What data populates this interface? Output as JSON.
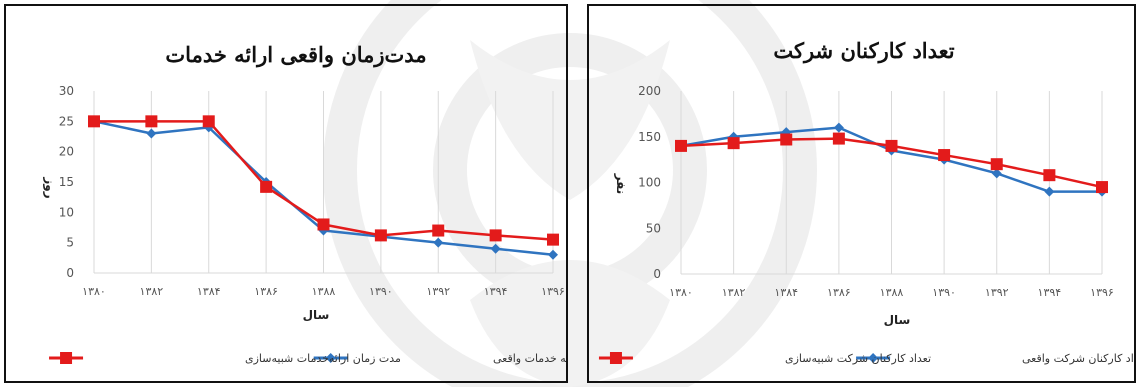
{
  "colors": {
    "actual": "#2f74c0",
    "simulation": "#e31b1b",
    "grid": "#d9d9d9",
    "frame": "#111111"
  },
  "chart_data": [
    {
      "type": "line",
      "title": "مدت‌زمان واقعی ارائه خدمات",
      "xlabel": "سال",
      "ylabel": "روز",
      "categories": [
        "۱۳۸۰",
        "۱۳۸۲",
        "۱۳۸۴",
        "۱۳۸۶",
        "۱۳۸۸",
        "۱۳۹۰",
        "۱۳۹۲",
        "۱۳۹۴",
        "۱۳۹۶"
      ],
      "ylim": [
        0,
        30
      ],
      "yticks": [
        0,
        5,
        10,
        15,
        20,
        25,
        30
      ],
      "grid": true,
      "legend_position": "bottom",
      "series": [
        {
          "name": "مدت زمان ارائه خدمات واقعی",
          "color": "#2f74c0",
          "marker": "diamond",
          "values": [
            25,
            23,
            24,
            15,
            7,
            6,
            5,
            4,
            3
          ]
        },
        {
          "name": "مدت زمان ارائه‌خدمات شبیه‌سازی",
          "color": "#e31b1b",
          "marker": "square",
          "values": [
            25,
            25,
            25,
            14.2,
            8,
            6.2,
            7,
            6.2,
            5.5
          ]
        }
      ]
    },
    {
      "type": "line",
      "title": "تعداد کارکنان شرکت",
      "xlabel": "سال",
      "ylabel": "نفر",
      "categories": [
        "۱۳۸۰",
        "۱۳۸۲",
        "۱۳۸۴",
        "۱۳۸۶",
        "۱۳۸۸",
        "۱۳۹۰",
        "۱۳۹۲",
        "۱۳۹۴",
        "۱۳۹۶"
      ],
      "ylim": [
        0,
        200
      ],
      "yticks": [
        0,
        50,
        100,
        150,
        200
      ],
      "grid": true,
      "legend_position": "bottom",
      "series": [
        {
          "name": "تعداد کارکنان شرکت واقعی",
          "color": "#2f74c0",
          "marker": "diamond",
          "values": [
            140,
            150,
            155,
            160,
            135,
            125,
            110,
            90,
            90
          ]
        },
        {
          "name": "تعداد کارکنان شرکت شبیه‌سازی",
          "color": "#e31b1b",
          "marker": "square",
          "values": [
            140,
            143,
            147,
            148,
            140,
            130,
            120,
            108,
            95
          ]
        }
      ]
    }
  ]
}
